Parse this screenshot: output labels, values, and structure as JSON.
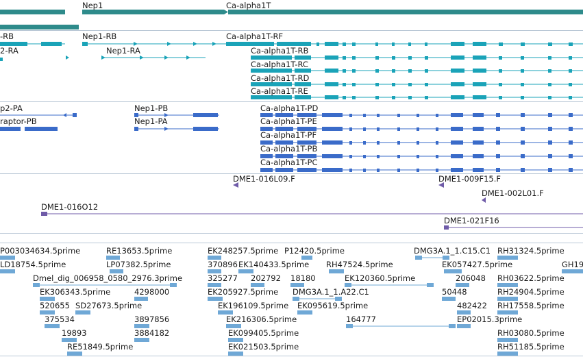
{
  "colors": {
    "gene": "#2e8b8b",
    "transcript_rb": "#1aa3b8",
    "transcript_p": "#3a6bc9",
    "clone": "#6f5ba8",
    "est": "#6fa8d6",
    "separator": "#9fb6cc"
  },
  "tracks": {
    "genes": {
      "labels": [
        "Nep1",
        "Ca-alpha1T"
      ]
    },
    "transcripts_r": {
      "labels": [
        "-RB",
        "2-RA",
        "Nep1-RB",
        "Nep1-RA",
        "Ca-alpha1T-RF",
        "Ca-alpha1T-RB",
        "Ca-alpha1T-RC",
        "Ca-alpha1T-RD",
        "Ca-alpha1T-RE"
      ]
    },
    "transcripts_p": {
      "labels": [
        "p2-PA",
        "raptor-PB",
        "Nep1-PB",
        "Nep1-PA",
        "Ca-alpha1T-PD",
        "Ca-alpha1T-PE",
        "Ca-alpha1T-PF",
        "Ca-alpha1T-PB",
        "Ca-alpha1T-PC"
      ]
    },
    "clones": {
      "labels": [
        "DME1-016L09.F",
        "DME1-009F15.F",
        "DME1-002L01.F",
        "DME1-016O12",
        "DME1-021F16"
      ]
    },
    "ests": {
      "labels": [
        "P003034634.5prime",
        "RE13653.5prime",
        "EK248257.5prime",
        "P12420.5prime",
        "DMG3A.1_1.C15.C1",
        "RH31324.5prime",
        "LD18754.5prime",
        "LP07382.5prime",
        "370896",
        "EK140433.5prime",
        "RH47524.5prime",
        "EK057427.5prime",
        "GH19",
        "Dmel_dig_006958_0580_2976.3prime",
        "325277",
        "202792",
        "18180",
        "EK120360.5prime",
        "206048",
        "RH03622.5prime",
        "EK306343.5prime",
        "4298000",
        "EK205927.5prime",
        "DMG3A.1_1.A22.C1",
        "50448",
        "RH24904.5prime",
        "520655",
        "SD27673.5prime",
        "EK196109.5prime",
        "EK095619.5prime",
        "482422",
        "RH17558.5prime",
        "375534",
        "3897856",
        "EK216306.5prime",
        "164777",
        "EP02015.3prime",
        "19893",
        "3884182",
        "EK099405.5prime",
        "RH03080.5prime",
        "RE51849.5prime",
        "EK021503.5prime",
        "RH51185.5prime"
      ]
    }
  }
}
